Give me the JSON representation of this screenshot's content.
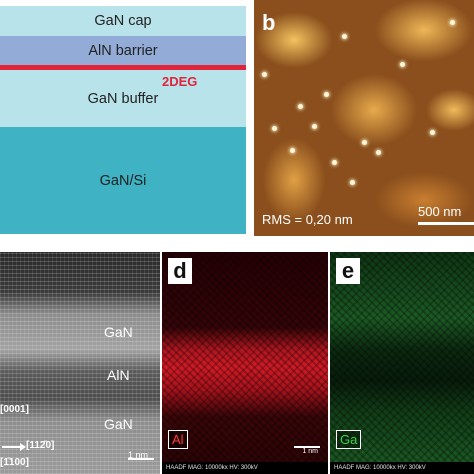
{
  "panel_a": {
    "layers": {
      "cap": "GaN cap",
      "barrier": "AlN barrier",
      "buffer": "GaN buffer",
      "substrate": "GaN/Si"
    },
    "twodeg_label": "2DEG",
    "colors": {
      "gan": "#b9e3ea",
      "aln": "#92acd7",
      "twodeg": "#e0243a",
      "si": "#3fb3c4"
    }
  },
  "panel_b": {
    "letter": "b",
    "rms": "RMS = 0,20 nm",
    "scale": "500 nm"
  },
  "panel_c": {
    "gan_top": "GaN",
    "aln": "AlN",
    "gan_bottom": "GaN",
    "axis_0001": "[0001]",
    "axis_1120": "[112̄0]",
    "axis_100": "[1̄100]",
    "scale": "1 nm"
  },
  "panel_d": {
    "letter": "d",
    "element": "Al",
    "scale": "1 nm",
    "meta": "HAADF  MAG: 10000kx  HV: 300kV"
  },
  "panel_e": {
    "letter": "e",
    "element": "Ga",
    "meta": "HAADF  MAG: 10000kx  HV: 300kV"
  }
}
